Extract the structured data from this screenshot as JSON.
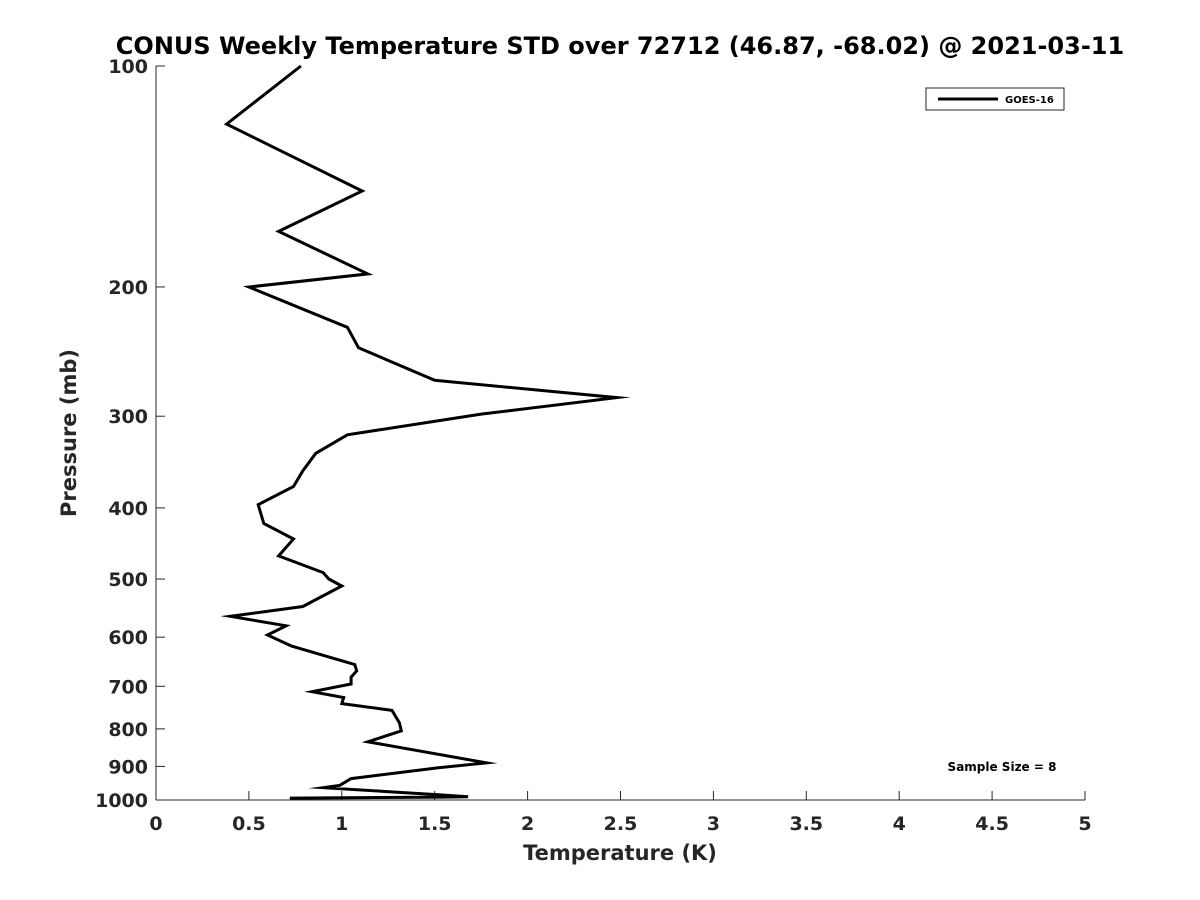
{
  "chart_data": {
    "type": "line",
    "title": "CONUS Weekly Temperature STD over 72712 (46.87, -68.02) @ 2021-03-11",
    "xlabel": "Temperature (K)",
    "ylabel": "Pressure (mb)",
    "xlim": [
      0,
      5
    ],
    "ylim": [
      100,
      1000
    ],
    "y_scale": "log",
    "y_reversed": true,
    "xticks": [
      "0",
      "0.5",
      "1",
      "1.5",
      "2",
      "2.5",
      "3",
      "3.5",
      "4",
      "4.5",
      "5"
    ],
    "xtick_values": [
      0,
      0.5,
      1,
      1.5,
      2,
      2.5,
      3,
      3.5,
      4,
      4.5,
      5
    ],
    "yticks": [
      "100",
      "200",
      "300",
      "400",
      "500",
      "600",
      "700",
      "800",
      "900",
      "1000"
    ],
    "ytick_values": [
      100,
      200,
      300,
      400,
      500,
      600,
      700,
      800,
      900,
      1000
    ],
    "grid": false,
    "legend_position": "top-right",
    "series": [
      {
        "name": "GOES-16",
        "color": "#000000",
        "points": [
          [
            0.78,
            100
          ],
          [
            0.38,
            120
          ],
          [
            1.11,
            148
          ],
          [
            0.66,
            168
          ],
          [
            1.14,
            192
          ],
          [
            0.5,
            200
          ],
          [
            1.03,
            227
          ],
          [
            1.09,
            242
          ],
          [
            1.5,
            268
          ],
          [
            2.48,
            283
          ],
          [
            1.75,
            298
          ],
          [
            1.03,
            318
          ],
          [
            0.86,
            337
          ],
          [
            0.79,
            356
          ],
          [
            0.74,
            374
          ],
          [
            0.55,
            396
          ],
          [
            0.58,
            420
          ],
          [
            0.74,
            441
          ],
          [
            0.66,
            465
          ],
          [
            0.9,
            490
          ],
          [
            0.93,
            500
          ],
          [
            1.0,
            511
          ],
          [
            0.79,
            545
          ],
          [
            0.4,
            562
          ],
          [
            0.7,
            579
          ],
          [
            0.6,
            596
          ],
          [
            0.73,
            617
          ],
          [
            1.07,
            654
          ],
          [
            1.08,
            667
          ],
          [
            1.05,
            680
          ],
          [
            1.05,
            695
          ],
          [
            0.84,
            712
          ],
          [
            1.01,
            725
          ],
          [
            1.0,
            739
          ],
          [
            1.27,
            755
          ],
          [
            1.31,
            785
          ],
          [
            1.32,
            805
          ],
          [
            1.14,
            833
          ],
          [
            1.78,
            890
          ],
          [
            1.52,
            904
          ],
          [
            1.05,
            935
          ],
          [
            0.99,
            955
          ],
          [
            0.9,
            962
          ],
          [
            1.5,
            983
          ],
          [
            1.68,
            990
          ],
          [
            1.55,
            991
          ],
          [
            0.72,
            994
          ]
        ]
      }
    ],
    "annotation": "Sample Size = 8"
  }
}
